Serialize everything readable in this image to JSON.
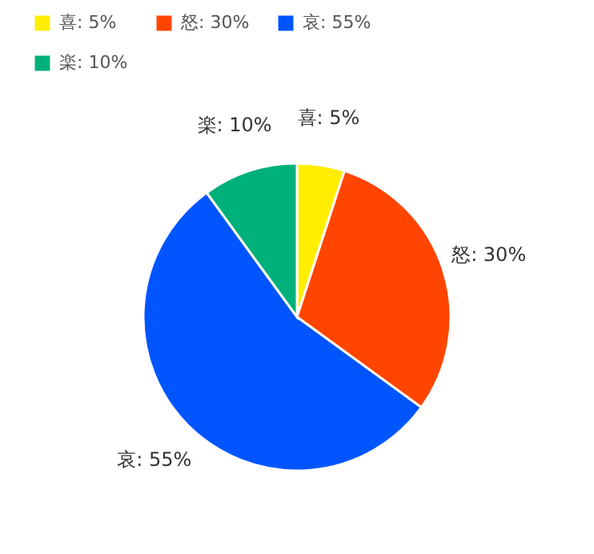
{
  "chart_data": {
    "type": "pie",
    "categories": [
      "喜",
      "怒",
      "哀",
      "楽"
    ],
    "values": [
      5,
      30,
      55,
      10
    ],
    "colors": [
      "#ffee00",
      "#ff4500",
      "#0055ff",
      "#00b07a"
    ],
    "value_labels": [
      "5%",
      "30%",
      "55%",
      "10%"
    ],
    "legend": "top left"
  }
}
